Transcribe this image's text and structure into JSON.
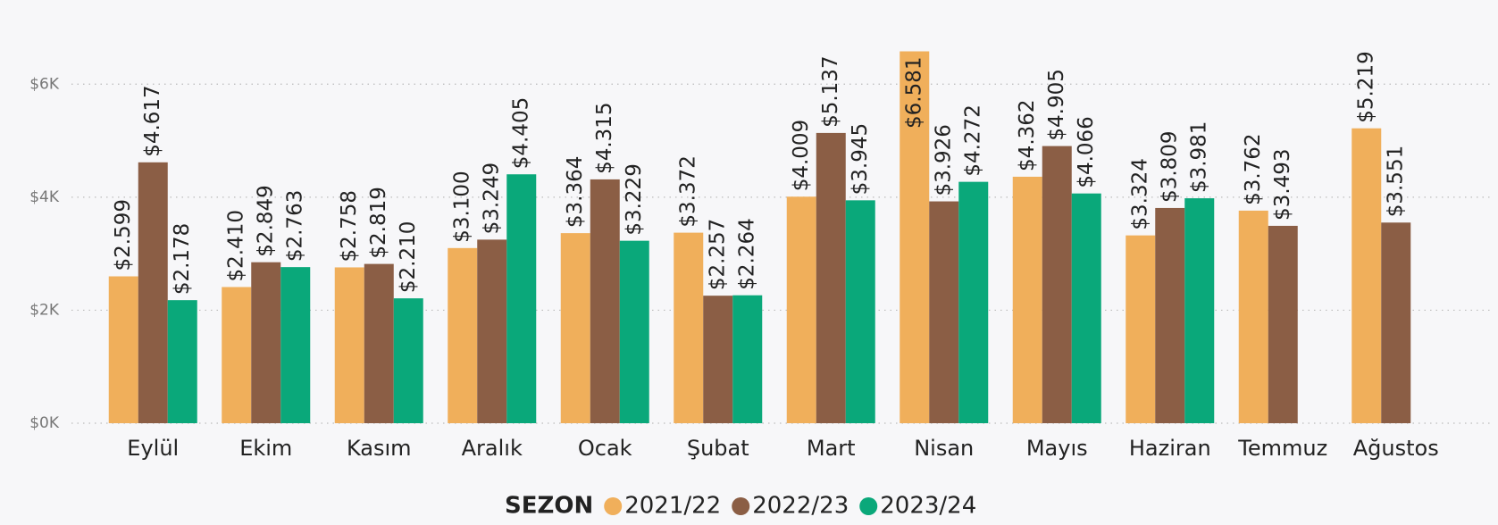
{
  "chart_data": {
    "type": "bar",
    "categories": [
      "Eylül",
      "Ekim",
      "Kasım",
      "Aralık",
      "Ocak",
      "Şubat",
      "Mart",
      "Nisan",
      "Mayıs",
      "Haziran",
      "Temmuz",
      "Ağustos"
    ],
    "legend_title": "SEZON",
    "series": [
      {
        "name": "2021/22",
        "color": "#f0af5b",
        "values": [
          2599,
          2410,
          2758,
          3100,
          3364,
          3372,
          4009,
          6581,
          4362,
          3324,
          3762,
          5219
        ],
        "value_labels": [
          "$2.599",
          "$2.410",
          "$2.758",
          "$3.100",
          "$3.364",
          "$3.372",
          "$4.009",
          "$6.581",
          "$4.362",
          "$3.324",
          "$3.762",
          "$5.219"
        ]
      },
      {
        "name": "2022/23",
        "color": "#8b5e45",
        "values": [
          4617,
          2849,
          2819,
          3249,
          4315,
          2257,
          5137,
          3926,
          4905,
          3809,
          3493,
          3551
        ],
        "value_labels": [
          "$4.617",
          "$2.849",
          "$2.819",
          "$3.249",
          "$4.315",
          "$2.257",
          "$5.137",
          "$3.926",
          "$4.905",
          "$3.809",
          "$3.493",
          "$3.551"
        ]
      },
      {
        "name": "2023/24",
        "color": "#0aa87a",
        "values": [
          2178,
          2763,
          2210,
          4405,
          3229,
          2264,
          3945,
          4272,
          4066,
          3981,
          null,
          null
        ],
        "value_labels": [
          "$2.178",
          "$2.763",
          "$2.210",
          "$4.405",
          "$3.229",
          "$2.264",
          "$3.945",
          "$4.272",
          "$4.066",
          "$3.981",
          null,
          null
        ]
      }
    ],
    "ylim": [
      0,
      7000
    ],
    "yticks": [
      {
        "value": 0,
        "label": "$0K"
      },
      {
        "value": 2000,
        "label": "$2K"
      },
      {
        "value": 4000,
        "label": "$4K"
      },
      {
        "value": 6000,
        "label": "$6K"
      }
    ],
    "grid": true
  }
}
